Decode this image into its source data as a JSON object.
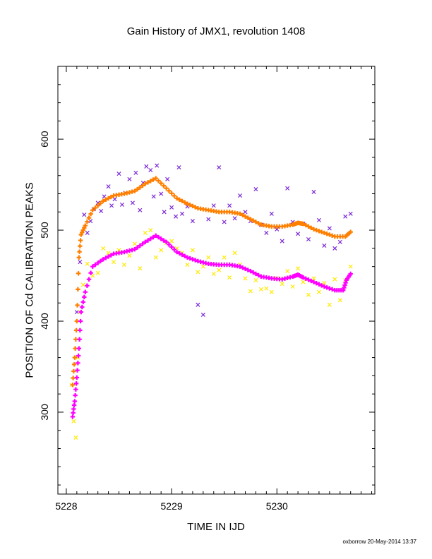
{
  "chart_data": {
    "type": "scatter",
    "title": "Gain History of JMX1, revolution 1408",
    "xlabel": "TIME IN IJD",
    "ylabel": "POSITION OF Cd CALIBRATION PEAKS",
    "xlim": [
      5227.92,
      5230.93
    ],
    "ylim": [
      210,
      680
    ],
    "xticks": [
      5228,
      5229,
      5230
    ],
    "yticks": [
      300,
      400,
      500,
      600
    ],
    "grid": false,
    "series": [
      {
        "color": "#7b28d8",
        "marker": "x",
        "points": [
          [
            5228.1,
            410
          ],
          [
            5228.13,
            465
          ],
          [
            5228.17,
            517
          ],
          [
            5228.2,
            497
          ],
          [
            5228.23,
            510
          ],
          [
            5228.26,
            523
          ],
          [
            5228.3,
            530
          ],
          [
            5228.33,
            521
          ],
          [
            5228.36,
            537
          ],
          [
            5228.4,
            548
          ],
          [
            5228.43,
            527
          ],
          [
            5228.46,
            534
          ],
          [
            5228.5,
            562
          ],
          [
            5228.53,
            528
          ],
          [
            5228.56,
            541
          ],
          [
            5228.6,
            556
          ],
          [
            5228.63,
            530
          ],
          [
            5228.66,
            563
          ],
          [
            5228.7,
            522
          ],
          [
            5228.73,
            552
          ],
          [
            5228.76,
            570
          ],
          [
            5228.8,
            566
          ],
          [
            5228.83,
            537
          ],
          [
            5228.86,
            571
          ],
          [
            5228.9,
            540
          ],
          [
            5228.93,
            520
          ],
          [
            5228.96,
            556
          ],
          [
            5229.0,
            525
          ],
          [
            5229.04,
            515
          ],
          [
            5229.07,
            569
          ],
          [
            5229.1,
            518
          ],
          [
            5229.15,
            526
          ],
          [
            5229.2,
            510
          ],
          [
            5229.25,
            418
          ],
          [
            5229.3,
            407
          ],
          [
            5229.35,
            512
          ],
          [
            5229.4,
            527
          ],
          [
            5229.45,
            569
          ],
          [
            5229.5,
            509
          ],
          [
            5229.55,
            527
          ],
          [
            5229.6,
            513
          ],
          [
            5229.65,
            538
          ],
          [
            5229.7,
            520
          ],
          [
            5229.75,
            510
          ],
          [
            5229.8,
            545
          ],
          [
            5229.85,
            506
          ],
          [
            5229.9,
            497
          ],
          [
            5229.95,
            518
          ],
          [
            5230.0,
            501
          ],
          [
            5230.05,
            488
          ],
          [
            5230.1,
            546
          ],
          [
            5230.15,
            509
          ],
          [
            5230.2,
            496
          ],
          [
            5230.25,
            507
          ],
          [
            5230.3,
            490
          ],
          [
            5230.35,
            542
          ],
          [
            5230.4,
            511
          ],
          [
            5230.45,
            483
          ],
          [
            5230.5,
            502
          ],
          [
            5230.55,
            480
          ],
          [
            5230.6,
            487
          ],
          [
            5230.65,
            515
          ],
          [
            5230.7,
            518
          ]
        ]
      },
      {
        "color": "#ffea00",
        "marker": "x",
        "points": [
          [
            5228.05,
            330
          ],
          [
            5228.07,
            290
          ],
          [
            5228.09,
            272
          ],
          [
            5228.11,
            360
          ],
          [
            5228.13,
            410
          ],
          [
            5228.16,
            440
          ],
          [
            5228.2,
            463
          ],
          [
            5228.25,
            450
          ],
          [
            5228.3,
            453
          ],
          [
            5228.35,
            480
          ],
          [
            5228.4,
            475
          ],
          [
            5228.45,
            465
          ],
          [
            5228.5,
            478
          ],
          [
            5228.55,
            462
          ],
          [
            5228.6,
            472
          ],
          [
            5228.65,
            485
          ],
          [
            5228.7,
            458
          ],
          [
            5228.75,
            497
          ],
          [
            5228.8,
            500
          ],
          [
            5228.85,
            470
          ],
          [
            5228.9,
            478
          ],
          [
            5228.95,
            486
          ],
          [
            5229.0,
            488
          ],
          [
            5229.05,
            480
          ],
          [
            5229.1,
            475
          ],
          [
            5229.15,
            462
          ],
          [
            5229.2,
            478
          ],
          [
            5229.25,
            454
          ],
          [
            5229.3,
            460
          ],
          [
            5229.35,
            470
          ],
          [
            5229.4,
            452
          ],
          [
            5229.45,
            456
          ],
          [
            5229.5,
            470
          ],
          [
            5229.55,
            448
          ],
          [
            5229.6,
            475
          ],
          [
            5229.65,
            462
          ],
          [
            5229.7,
            447
          ],
          [
            5229.75,
            433
          ],
          [
            5229.8,
            445
          ],
          [
            5229.85,
            435
          ],
          [
            5229.9,
            436
          ],
          [
            5229.95,
            432
          ],
          [
            5230.0,
            447
          ],
          [
            5230.05,
            441
          ],
          [
            5230.1,
            455
          ],
          [
            5230.15,
            438
          ],
          [
            5230.2,
            458
          ],
          [
            5230.25,
            443
          ],
          [
            5230.3,
            429
          ],
          [
            5230.35,
            447
          ],
          [
            5230.4,
            432
          ],
          [
            5230.45,
            442
          ],
          [
            5230.5,
            418
          ],
          [
            5230.55,
            446
          ],
          [
            5230.6,
            423
          ],
          [
            5230.65,
            445
          ],
          [
            5230.7,
            460
          ]
        ]
      },
      {
        "color": "#ff7f00",
        "marker": "+",
        "points": [
          [
            5228.06,
            330
          ],
          [
            5228.08,
            360
          ],
          [
            5228.1,
            400
          ],
          [
            5228.12,
            470
          ],
          [
            5228.14,
            495
          ],
          [
            5228.18,
            505
          ],
          [
            5228.25,
            522
          ],
          [
            5228.35,
            532
          ],
          [
            5228.45,
            538
          ],
          [
            5228.55,
            540
          ],
          [
            5228.65,
            543
          ],
          [
            5228.75,
            551
          ],
          [
            5228.85,
            557
          ],
          [
            5228.95,
            546
          ],
          [
            5229.05,
            535
          ],
          [
            5229.15,
            529
          ],
          [
            5229.25,
            524
          ],
          [
            5229.35,
            522
          ],
          [
            5229.45,
            520
          ],
          [
            5229.55,
            520
          ],
          [
            5229.65,
            518
          ],
          [
            5229.75,
            512
          ],
          [
            5229.85,
            506
          ],
          [
            5229.95,
            504
          ],
          [
            5230.05,
            504
          ],
          [
            5230.15,
            506
          ],
          [
            5230.2,
            508
          ],
          [
            5230.25,
            507
          ],
          [
            5230.35,
            501
          ],
          [
            5230.45,
            497
          ],
          [
            5230.55,
            493
          ],
          [
            5230.65,
            493
          ],
          [
            5230.7,
            498
          ]
        ]
      },
      {
        "color": "#ff00ff",
        "marker": "+",
        "points": [
          [
            5228.06,
            295
          ],
          [
            5228.08,
            312
          ],
          [
            5228.1,
            338
          ],
          [
            5228.12,
            370
          ],
          [
            5228.14,
            410
          ],
          [
            5228.18,
            432
          ],
          [
            5228.25,
            460
          ],
          [
            5228.35,
            468
          ],
          [
            5228.45,
            474
          ],
          [
            5228.55,
            476
          ],
          [
            5228.65,
            479
          ],
          [
            5228.75,
            487
          ],
          [
            5228.85,
            494
          ],
          [
            5228.95,
            487
          ],
          [
            5229.05,
            476
          ],
          [
            5229.15,
            470
          ],
          [
            5229.25,
            466
          ],
          [
            5229.35,
            463
          ],
          [
            5229.45,
            462
          ],
          [
            5229.55,
            462
          ],
          [
            5229.65,
            460
          ],
          [
            5229.75,
            455
          ],
          [
            5229.85,
            449
          ],
          [
            5229.95,
            447
          ],
          [
            5230.05,
            446
          ],
          [
            5230.15,
            449
          ],
          [
            5230.2,
            451
          ],
          [
            5230.25,
            448
          ],
          [
            5230.35,
            443
          ],
          [
            5230.45,
            438
          ],
          [
            5230.55,
            434
          ],
          [
            5230.63,
            434
          ],
          [
            5230.66,
            445
          ],
          [
            5230.7,
            452
          ]
        ]
      }
    ]
  },
  "footer": "oxborrow 20-May-2014 13:37"
}
